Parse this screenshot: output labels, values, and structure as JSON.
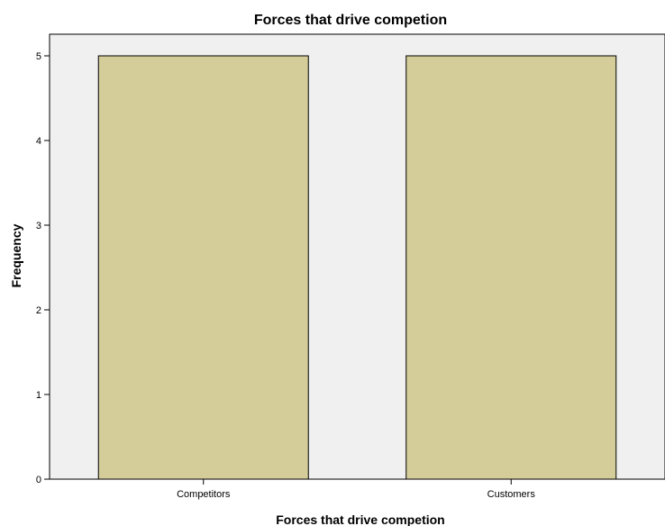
{
  "chart_data": {
    "type": "bar",
    "title": "Forces that drive competion",
    "xlabel": "Forces that drive competion",
    "ylabel": "Frequency",
    "categories": [
      "Competitors",
      "Customers"
    ],
    "values": [
      5,
      5
    ],
    "ylim": [
      0,
      5
    ],
    "yticks": [
      "0",
      "1",
      "2",
      "3",
      "4",
      "5"
    ],
    "grid": false,
    "legend": "none",
    "colors": {
      "bar_fill": "#d4cd99",
      "bar_stroke": "#000000",
      "plot_background": "#f0f0f0",
      "axis": "#000000"
    }
  }
}
